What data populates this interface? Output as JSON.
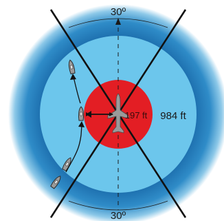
{
  "labels": {
    "angle_top": "30º",
    "angle_bottom": "30º",
    "inner_radius": "197 ft",
    "outer_radius": "984 ft"
  },
  "colors": {
    "background": "#ffffff",
    "outer_zone_edge": "#1a6aa8",
    "outer_zone_mid": "#4aa8d8",
    "middle_zone": "#6cc6ec",
    "inner_zone": "#e31e24",
    "sector_lines": "#111111",
    "vessel_fill": "#9a9a9a",
    "arrow": "#111111"
  },
  "icons": {
    "vessel": "boat-icon",
    "aircraft": "seaplane-icon"
  }
}
